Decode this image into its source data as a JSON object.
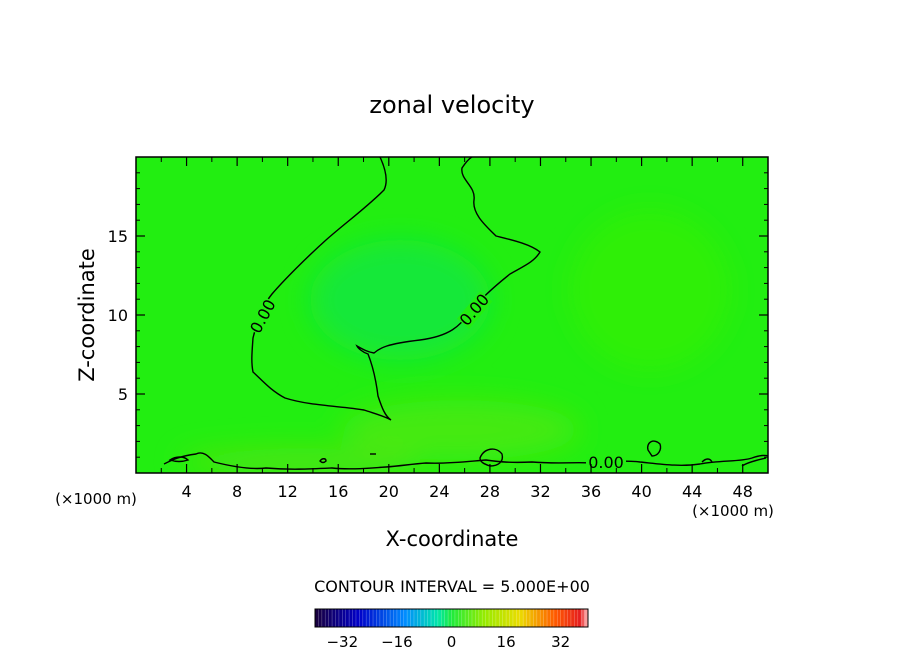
{
  "chart_data": {
    "type": "contour",
    "title": "zonal velocity",
    "xlabel": "X-coordinate",
    "ylabel": "Z-coordinate",
    "x_unit": "(×1000 m)",
    "y_unit": "(×1000 m)",
    "xlim": [
      0,
      50
    ],
    "ylim": [
      0,
      20
    ],
    "x_ticks": [
      4,
      8,
      12,
      16,
      20,
      24,
      28,
      32,
      36,
      40,
      44,
      48
    ],
    "x_tick_labels": [
      "4",
      "8",
      "12",
      "16",
      "20",
      "24",
      "28",
      "32",
      "36",
      "40",
      "44",
      "48"
    ],
    "y_ticks": [
      5,
      10,
      15
    ],
    "y_tick_labels": [
      "5",
      "10",
      "15"
    ],
    "contour_interval_text": "CONTOUR INTERVAL = 5.000E+00",
    "contour_level_label": "0.00",
    "colorbar": {
      "min": -40,
      "max": 40,
      "ticks": [
        -32,
        -16,
        0,
        16,
        32
      ],
      "tick_labels": [
        "−32",
        "−16",
        "0",
        "16",
        "32"
      ]
    },
    "colors": {
      "field_base": "#22ee11",
      "contour_line": "#000000"
    }
  }
}
